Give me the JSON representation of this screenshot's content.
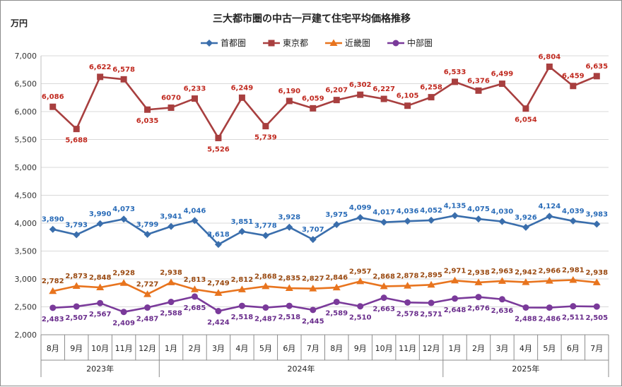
{
  "chart_data": {
    "type": "line",
    "title": "三大都市圏の中古一戸建て住宅平均価格推移",
    "ylabel": "万円",
    "ylim": [
      2000,
      7000
    ],
    "yticks": [
      "2,000",
      "2,500",
      "3,000",
      "3,500",
      "4,000",
      "4,500",
      "5,000",
      "5,500",
      "6,000",
      "6,500",
      "7,000"
    ],
    "grid": true,
    "legend": "top",
    "categories": [
      "8月",
      "9月",
      "10月",
      "11月",
      "12月",
      "1月",
      "2月",
      "3月",
      "4月",
      "5月",
      "6月",
      "7月",
      "8月",
      "9月",
      "10月",
      "11月",
      "12月",
      "1月",
      "2月",
      "3月",
      "4月",
      "5月",
      "6月",
      "7月"
    ],
    "years": [
      {
        "label": "2023年",
        "start": 0,
        "end": 4
      },
      {
        "label": "2024年",
        "start": 5,
        "end": 16
      },
      {
        "label": "2025年",
        "start": 17,
        "end": 23
      }
    ],
    "series": [
      {
        "name": "首都圏",
        "color": "#3a6eac",
        "label_color": "#2a6cb8",
        "marker": "diamond",
        "values": [
          3890,
          3793,
          3990,
          4073,
          3799,
          3941,
          4046,
          3618,
          3851,
          3778,
          3928,
          3707,
          3975,
          4099,
          4017,
          4036,
          4052,
          4135,
          4075,
          4030,
          3926,
          4124,
          4039,
          3983
        ],
        "labels": [
          "3,890",
          "3,793",
          "3,990",
          "4,073",
          "3,799",
          "3,941",
          "4,046",
          "3,618",
          "3,851",
          "3,778",
          "3,928",
          "3,707",
          "3,975",
          "4,099",
          "4,017",
          "4,036",
          "4,052",
          "4,135",
          "4,075",
          "4,030",
          "3,926",
          "4,124",
          "4,039",
          "3,983"
        ],
        "label_pos": [
          "above",
          "above",
          "above",
          "above",
          "above",
          "above",
          "above",
          "above",
          "above",
          "above",
          "above",
          "above",
          "above",
          "above",
          "above",
          "above",
          "above",
          "above",
          "above",
          "above",
          "above",
          "above",
          "above",
          "above"
        ]
      },
      {
        "name": "東京都",
        "color": "#a83f3f",
        "label_color": "#c0291f",
        "marker": "square",
        "values": [
          6086,
          5688,
          6622,
          6578,
          6035,
          6070,
          6233,
          5526,
          6249,
          5739,
          6190,
          6059,
          6207,
          6302,
          6227,
          6105,
          6258,
          6533,
          6376,
          6499,
          6054,
          6804,
          6459,
          6635
        ],
        "labels": [
          "6,086",
          "5,688",
          "6,622",
          "6,578",
          "6,035",
          "6070",
          "6,233",
          "5,526",
          "6,249",
          "5,739",
          "6,190",
          "6,059",
          "6,207",
          "6,302",
          "6,227",
          "6,105",
          "6,258",
          "6,533",
          "6,376",
          "6,499",
          "6,054",
          "6,804",
          "6,459",
          "6,635"
        ],
        "label_pos": [
          "above",
          "below",
          "above",
          "above",
          "below",
          "above",
          "above",
          "below",
          "above",
          "below",
          "above",
          "above",
          "above",
          "above",
          "above",
          "above",
          "above",
          "above",
          "above",
          "above",
          "below",
          "above",
          "above",
          "above"
        ]
      },
      {
        "name": "近畿圏",
        "color": "#e8741e",
        "label_color": "#9a4a12",
        "marker": "triangle",
        "values": [
          2782,
          2873,
          2848,
          2928,
          2727,
          2938,
          2813,
          2749,
          2812,
          2868,
          2835,
          2827,
          2846,
          2957,
          2868,
          2878,
          2895,
          2971,
          2938,
          2963,
          2942,
          2966,
          2981,
          2938
        ],
        "labels": [
          "2,782",
          "2,873",
          "2,848",
          "2,928",
          "2,727",
          "2,938",
          "2,813",
          "2,749",
          "2,812",
          "2,868",
          "2,835",
          "2,827",
          "2,846",
          "2,957",
          "2,868",
          "2,878",
          "2,895",
          "2,971",
          "2,938",
          "2,963",
          "2,942",
          "2,966",
          "2,981",
          "2,938"
        ],
        "label_pos": [
          "above",
          "above",
          "above",
          "above",
          "above",
          "above",
          "above",
          "above",
          "above",
          "above",
          "above",
          "above",
          "above",
          "above",
          "above",
          "above",
          "above",
          "above",
          "above",
          "above",
          "above",
          "above",
          "above",
          "above"
        ]
      },
      {
        "name": "中部圏",
        "color": "#7a3a9a",
        "label_color": "#6a2d8c",
        "marker": "circle",
        "values": [
          2483,
          2507,
          2567,
          2409,
          2487,
          2588,
          2685,
          2424,
          2518,
          2487,
          2518,
          2445,
          2589,
          2510,
          2663,
          2578,
          2571,
          2648,
          2676,
          2636,
          2488,
          2486,
          2511,
          2505
        ],
        "labels": [
          "2,483",
          "2,507",
          "2,567",
          "2,409",
          "2,487",
          "2,588",
          "2,685",
          "2,424",
          "2,518",
          "2,487",
          "2,518",
          "2,445",
          "2,589",
          "2,510",
          "2,663",
          "2,578",
          "2,571",
          "2,648",
          "2,676",
          "2,636",
          "2,488",
          "2,486",
          "2,511",
          "2,505"
        ],
        "label_pos": [
          "below",
          "below",
          "below",
          "below",
          "below",
          "below",
          "below",
          "below",
          "below",
          "below",
          "below",
          "below",
          "below",
          "below",
          "below",
          "below",
          "below",
          "below",
          "below",
          "below",
          "below",
          "below",
          "below",
          "below"
        ]
      }
    ]
  }
}
